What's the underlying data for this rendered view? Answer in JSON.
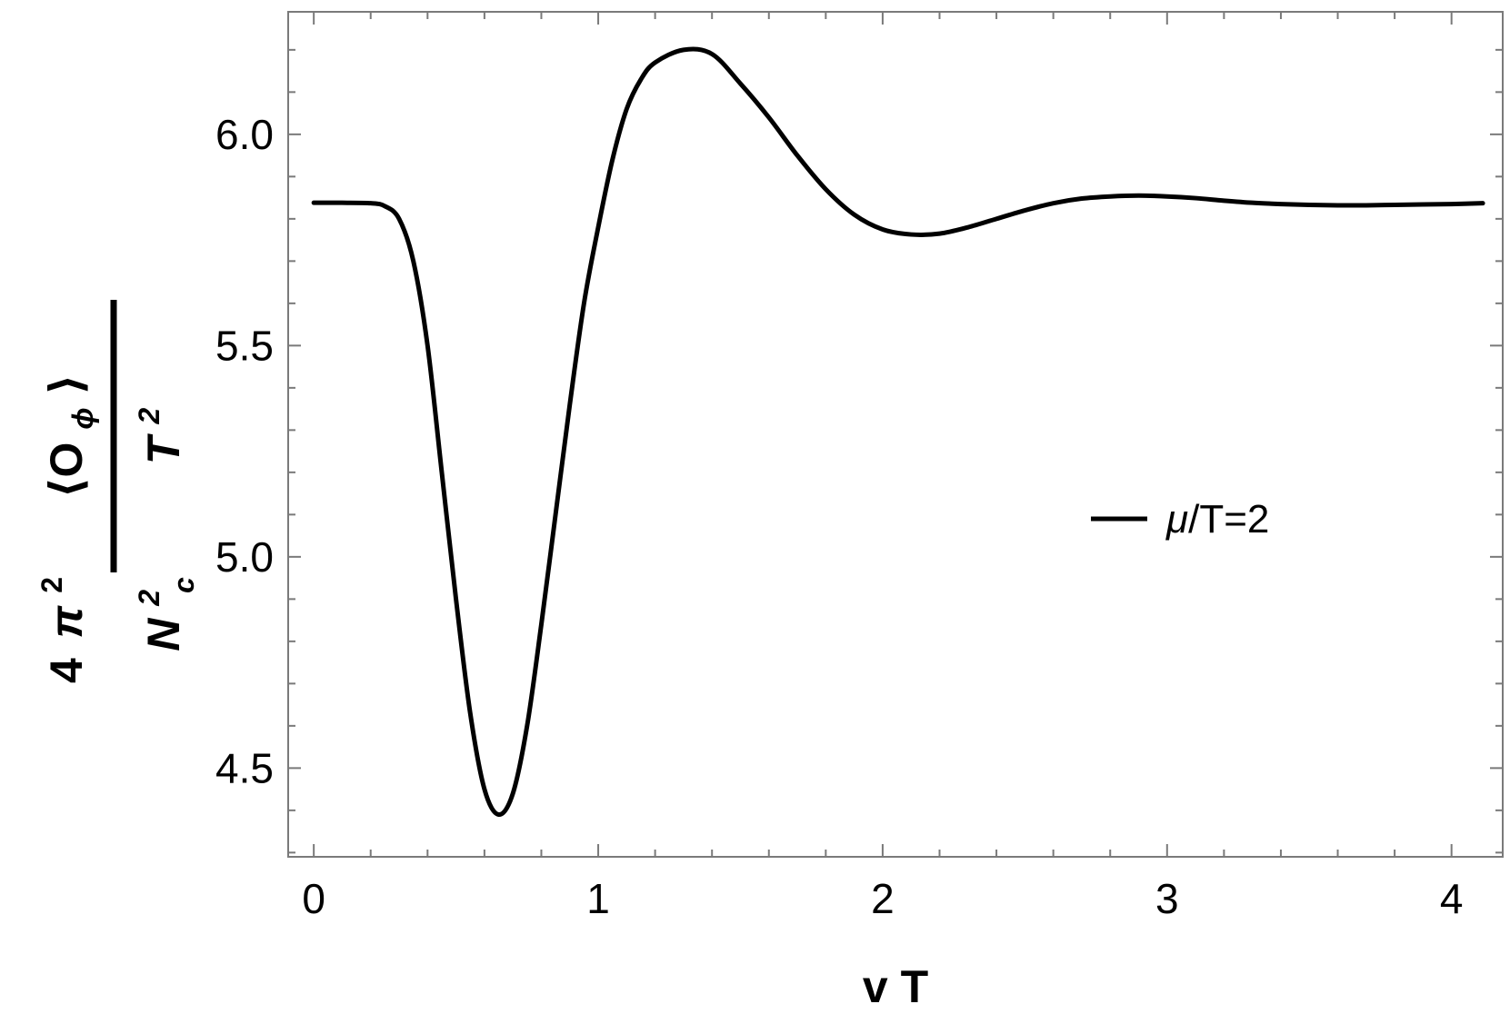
{
  "chart_data": {
    "type": "line",
    "title": "",
    "xlabel": "v T",
    "ylabel": {
      "prefix": "4",
      "pi": "π",
      "pi_exp": "2",
      "numerator": "⟨O",
      "numerator_sub": "ϕ",
      "numerator_close": "⟩",
      "N": "N",
      "N_exp": "2",
      "N_sub": "c",
      "T": "T",
      "T_exp": "2"
    },
    "xlim": [
      -0.09,
      4.18
    ],
    "ylim": [
      4.29,
      6.29
    ],
    "xticks": [
      {
        "value": 0,
        "label": "0"
      },
      {
        "value": 1,
        "label": "1"
      },
      {
        "value": 2,
        "label": "2"
      },
      {
        "value": 3,
        "label": "3"
      },
      {
        "value": 4,
        "label": "4"
      }
    ],
    "yticks": [
      {
        "value": 4.5,
        "label": "4.5"
      },
      {
        "value": 5.0,
        "label": "5.0"
      },
      {
        "value": 5.5,
        "label": "5.5"
      },
      {
        "value": 6.0,
        "label": "6.0"
      }
    ],
    "grid": false,
    "legend": {
      "placement": "right",
      "mu": "μ",
      "rest": "/T=2"
    },
    "series": [
      {
        "name": "μ/T=2",
        "color": "#000000",
        "points": [
          [
            0.0,
            5.838
          ],
          [
            0.1,
            5.838
          ],
          [
            0.2,
            5.837
          ],
          [
            0.25,
            5.83
          ],
          [
            0.3,
            5.8
          ],
          [
            0.35,
            5.7
          ],
          [
            0.4,
            5.5
          ],
          [
            0.45,
            5.2
          ],
          [
            0.5,
            4.9
          ],
          [
            0.55,
            4.63
          ],
          [
            0.6,
            4.45
          ],
          [
            0.65,
            4.39
          ],
          [
            0.7,
            4.44
          ],
          [
            0.75,
            4.6
          ],
          [
            0.8,
            4.84
          ],
          [
            0.85,
            5.1
          ],
          [
            0.9,
            5.36
          ],
          [
            0.95,
            5.6
          ],
          [
            1.0,
            5.78
          ],
          [
            1.05,
            5.94
          ],
          [
            1.1,
            6.06
          ],
          [
            1.15,
            6.13
          ],
          [
            1.2,
            6.17
          ],
          [
            1.3,
            6.2
          ],
          [
            1.4,
            6.19
          ],
          [
            1.5,
            6.12
          ],
          [
            1.6,
            6.04
          ],
          [
            1.7,
            5.95
          ],
          [
            1.8,
            5.87
          ],
          [
            1.9,
            5.81
          ],
          [
            2.0,
            5.775
          ],
          [
            2.1,
            5.763
          ],
          [
            2.2,
            5.765
          ],
          [
            2.3,
            5.78
          ],
          [
            2.4,
            5.8
          ],
          [
            2.5,
            5.82
          ],
          [
            2.6,
            5.837
          ],
          [
            2.7,
            5.848
          ],
          [
            2.8,
            5.853
          ],
          [
            2.9,
            5.855
          ],
          [
            3.0,
            5.853
          ],
          [
            3.1,
            5.849
          ],
          [
            3.2,
            5.843
          ],
          [
            3.3,
            5.838
          ],
          [
            3.4,
            5.835
          ],
          [
            3.5,
            5.833
          ],
          [
            3.6,
            5.832
          ],
          [
            3.7,
            5.832
          ],
          [
            3.8,
            5.833
          ],
          [
            3.9,
            5.834
          ],
          [
            4.0,
            5.835
          ],
          [
            4.11,
            5.837
          ]
        ]
      }
    ]
  }
}
